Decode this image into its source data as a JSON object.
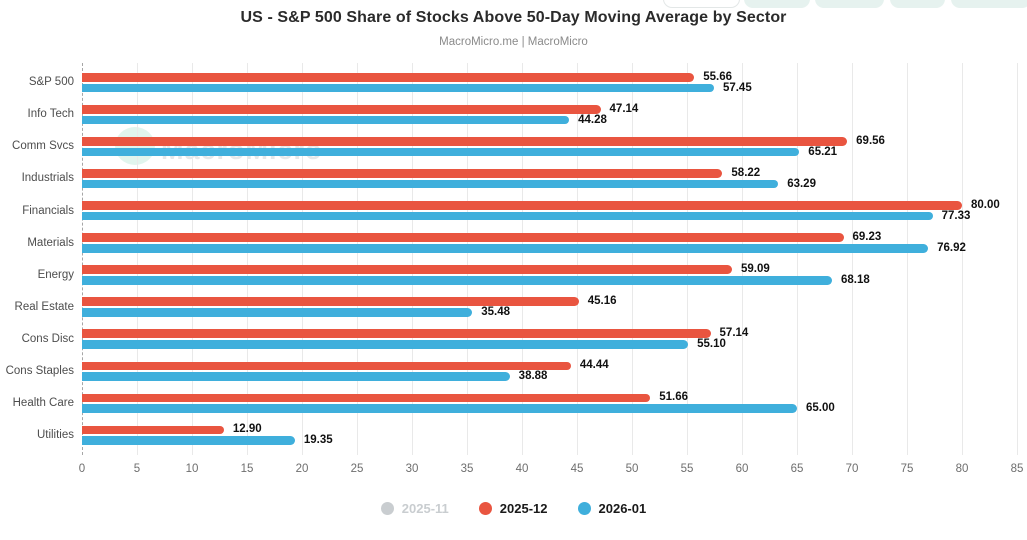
{
  "header": {
    "title": "US - S&P 500 Share of Stocks Above 50-Day Moving Average by Sector",
    "subtitle": "MacroMicro.me | MacroMicro"
  },
  "watermark": {
    "text": "MacroMicro"
  },
  "chart_data": {
    "type": "bar",
    "orientation": "horizontal",
    "title": "US - S&P 500 Share of Stocks Above 50-Day Moving Average by Sector",
    "categories": [
      "S&P 500",
      "Info Tech",
      "Comm Svcs",
      "Industrials",
      "Financials",
      "Materials",
      "Energy",
      "Real Estate",
      "Cons Disc",
      "Cons Staples",
      "Health Care",
      "Utilities"
    ],
    "series": [
      {
        "name": "2025-11",
        "color": "#c9cdd0",
        "hidden": true,
        "values": []
      },
      {
        "name": "2025-12",
        "color": "#e95540",
        "hidden": false,
        "values": [
          55.66,
          47.14,
          69.56,
          58.22,
          80.0,
          69.23,
          59.09,
          45.16,
          57.14,
          44.44,
          51.66,
          12.9
        ]
      },
      {
        "name": "2026-01",
        "color": "#3fafdc",
        "hidden": false,
        "values": [
          57.45,
          44.28,
          65.21,
          63.29,
          77.33,
          76.92,
          68.18,
          35.48,
          55.1,
          38.88,
          65.0,
          19.35
        ]
      }
    ],
    "xlim": [
      0,
      85
    ],
    "x_ticks": [
      0,
      5,
      10,
      15,
      20,
      25,
      30,
      35,
      40,
      45,
      50,
      55,
      60,
      65,
      70,
      75,
      80,
      85
    ],
    "value_label_decimals": 2,
    "legend_position": "bottom",
    "grid": "vertical"
  }
}
